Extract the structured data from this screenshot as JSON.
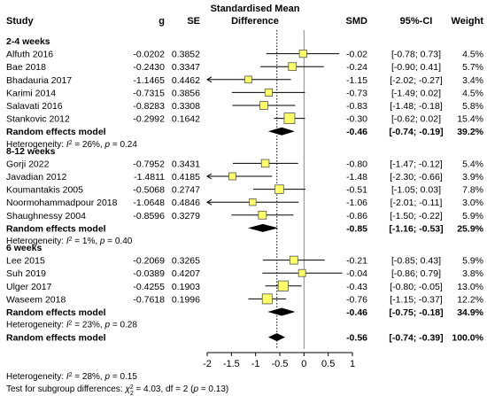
{
  "headers": {
    "study": "Study",
    "g": "g",
    "se": "SE",
    "effect_line1": "Standardised Mean",
    "effect_line2": "Difference",
    "smd": "SMD",
    "ci": "95%-CI",
    "weight": "Weight"
  },
  "chart_data": {
    "type": "forest",
    "xlim": [
      -2,
      1
    ],
    "xticks": [
      "-2",
      "-1.5",
      "-1",
      "-0.5",
      "0",
      "0.5",
      "1"
    ],
    "xtick_values": [
      -2,
      -1.5,
      -1,
      -0.5,
      0,
      0.5,
      1
    ],
    "reference_line": 0,
    "overall_dotted_line": -0.56,
    "groups": [
      {
        "name": "2-4 weeks",
        "studies": [
          {
            "study": "Alfuth 2016",
            "g": "-0.0202",
            "se": "0.3852",
            "smd": "-0.02",
            "ci": "[-0.78; 0.73]",
            "weight": "4.5%",
            "est": -0.02,
            "lo": -0.78,
            "hi": 0.73,
            "w": 4.5
          },
          {
            "study": "Bae 2018",
            "g": "-0.2430",
            "se": "0.3347",
            "smd": "-0.24",
            "ci": "[-0.90; 0.41]",
            "weight": "5.7%",
            "est": -0.24,
            "lo": -0.9,
            "hi": 0.41,
            "w": 5.7
          },
          {
            "study": "Bhadauria 2017",
            "g": "-1.1465",
            "se": "0.4462",
            "smd": "-1.15",
            "ci": "[-2.02; -0.27]",
            "weight": "3.4%",
            "est": -1.15,
            "lo": -2.02,
            "hi": -0.27,
            "w": 3.4
          },
          {
            "study": "Karimi 2014",
            "g": "-0.7315",
            "se": "0.3856",
            "smd": "-0.73",
            "ci": "[-1.49; 0.02]",
            "weight": "4.5%",
            "est": -0.73,
            "lo": -1.49,
            "hi": 0.02,
            "w": 4.5
          },
          {
            "study": "Salavati 2016",
            "g": "-0.8283",
            "se": "0.3308",
            "smd": "-0.83",
            "ci": "[-1.48; -0.18]",
            "weight": "5.8%",
            "est": -0.83,
            "lo": -1.48,
            "hi": -0.18,
            "w": 5.8
          },
          {
            "study": "Stankovic 2012",
            "g": "-0.2992",
            "se": "0.1642",
            "smd": "-0.30",
            "ci": "[-0.62; 0.02]",
            "weight": "15.4%",
            "est": -0.3,
            "lo": -0.62,
            "hi": 0.02,
            "w": 15.4
          }
        ],
        "summary": {
          "label": "Random effects model",
          "smd": "-0.46",
          "ci": "[-0.74; -0.19]",
          "weight": "39.2%",
          "est": -0.46,
          "lo": -0.74,
          "hi": -0.19
        },
        "heterogeneity": {
          "prefix": "Heterogeneity: ",
          "i2_symbol": "I",
          "i2_exp": "2",
          "rest": " = 26%, ",
          "p_symbol": "p",
          "p_value": " = 0.24"
        }
      },
      {
        "name": "8-12 weeks",
        "studies": [
          {
            "study": "Gorji 2022",
            "g": "-0.7952",
            "se": "0.3431",
            "smd": "-0.80",
            "ci": "[-1.47; -0.12]",
            "weight": "5.4%",
            "est": -0.8,
            "lo": -1.47,
            "hi": -0.12,
            "w": 5.4
          },
          {
            "study": "Javadian 2012",
            "g": "-1.4811",
            "se": "0.4185",
            "smd": "-1.48",
            "ci": "[-2.30; -0.66]",
            "weight": "3.9%",
            "est": -1.48,
            "lo": -2.3,
            "hi": -0.66,
            "w": 3.9
          },
          {
            "study": "Koumantakis 2005",
            "g": "-0.5068",
            "se": "0.2747",
            "smd": "-0.51",
            "ci": "[-1.05; 0.03]",
            "weight": "7.8%",
            "est": -0.51,
            "lo": -1.05,
            "hi": 0.03,
            "w": 7.8
          },
          {
            "study": "Noormohammadpour 2018",
            "g": "-1.0648",
            "se": "0.4846",
            "smd": "-1.06",
            "ci": "[-2.01; -0.11]",
            "weight": "3.0%",
            "est": -1.06,
            "lo": -2.01,
            "hi": -0.11,
            "w": 3.0
          },
          {
            "study": "Shaughnessy 2004",
            "g": "-0.8596",
            "se": "0.3279",
            "smd": "-0.86",
            "ci": "[-1.50; -0.22]",
            "weight": "5.9%",
            "est": -0.86,
            "lo": -1.5,
            "hi": -0.22,
            "w": 5.9
          }
        ],
        "summary": {
          "label": "Random effects model",
          "smd": "-0.85",
          "ci": "[-1.16; -0.53]",
          "weight": "25.9%",
          "est": -0.85,
          "lo": -1.16,
          "hi": -0.53
        },
        "heterogeneity": {
          "prefix": "Heterogeneity: ",
          "i2_symbol": "I",
          "i2_exp": "2",
          "rest": " = 1%, ",
          "p_symbol": "p",
          "p_value": " = 0.40"
        }
      },
      {
        "name": "6 weeks",
        "studies": [
          {
            "study": "Lee 2015",
            "g": "-0.2069",
            "se": "0.3265",
            "smd": "-0.21",
            "ci": "[-0.85; 0.43]",
            "weight": "5.9%",
            "est": -0.21,
            "lo": -0.85,
            "hi": 0.43,
            "w": 5.9
          },
          {
            "study": "Suh 2019",
            "g": "-0.0389",
            "se": "0.4207",
            "smd": "-0.04",
            "ci": "[-0.86; 0.79]",
            "weight": "3.8%",
            "est": -0.04,
            "lo": -0.86,
            "hi": 0.79,
            "w": 3.8
          },
          {
            "study": "Ulger 2017",
            "g": "-0.4255",
            "se": "0.1903",
            "smd": "-0.43",
            "ci": "[-0.80; -0.05]",
            "weight": "13.0%",
            "est": -0.43,
            "lo": -0.8,
            "hi": -0.05,
            "w": 13.0
          },
          {
            "study": "Waseem 2018",
            "g": "-0.7618",
            "se": "0.1996",
            "smd": "-0.76",
            "ci": "[-1.15; -0.37]",
            "weight": "12.2%",
            "est": -0.76,
            "lo": -1.15,
            "hi": -0.37,
            "w": 12.2
          }
        ],
        "summary": {
          "label": "Random effects model",
          "smd": "-0.46",
          "ci": "[-0.75; -0.18]",
          "weight": "34.9%",
          "est": -0.46,
          "lo": -0.75,
          "hi": -0.18
        },
        "heterogeneity": {
          "prefix": "Heterogeneity: ",
          "i2_symbol": "I",
          "i2_exp": "2",
          "rest": " = 23%, ",
          "p_symbol": "p",
          "p_value": " = 0.28"
        }
      }
    ],
    "overall": {
      "label": "Random effects model",
      "smd": "-0.56",
      "ci": "[-0.74; -0.39]",
      "weight": "100.0%",
      "est": -0.56,
      "lo": -0.74,
      "hi": -0.39
    },
    "overall_heterogeneity": {
      "prefix": "Heterogeneity: ",
      "i2_symbol": "I",
      "i2_exp": "2",
      "rest": " = 28%, ",
      "p_symbol": "p",
      "p_value": " = 0.15"
    },
    "subgroup_test": {
      "prefix": "Test for subgroup differences: ",
      "chi_symbol": "χ",
      "chi_sub": "2",
      "chi_sup": "2",
      "rest": " = 4.03, df = 2 (",
      "p_symbol": "p",
      "p_value": " = 0.13)"
    },
    "colors": {
      "square_fill": "#FFFF66",
      "square_stroke": "#555555",
      "diamond": "#000000",
      "line": "#000000"
    }
  }
}
